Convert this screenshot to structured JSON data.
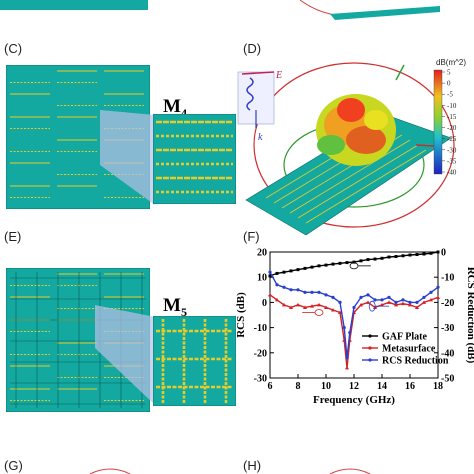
{
  "panels": {
    "c": {
      "label": "(C)",
      "zoom_label": "M",
      "zoom_sub": "4"
    },
    "d": {
      "label": "(D)",
      "colorbar_title": "dB(m^2)",
      "colorbar_ticks": [
        "5",
        "0",
        "-5",
        "-10",
        "-15",
        "-20",
        "-25",
        "-30",
        "-35",
        "-40"
      ],
      "wave_e": "E",
      "wave_k": "k"
    },
    "e": {
      "label": "(E)",
      "zoom_label": "M",
      "zoom_sub": "5"
    },
    "f": {
      "label": "(F)"
    },
    "g": {
      "label": "(G)"
    },
    "h": {
      "label": "(H)"
    }
  },
  "colors": {
    "board": "#14a9a0",
    "strip": "#e6cc2a",
    "gaf": "#000000",
    "metasurface": "#d42020",
    "rcs_reduction": "#2a3fd0"
  },
  "chart_data": {
    "type": "line",
    "xlabel": "Frequency (GHz)",
    "ylabel": "RCS (dB)",
    "y2label": "RCS Reduction (dB)",
    "xlim": [
      6,
      18
    ],
    "ylim": [
      -30,
      20
    ],
    "y2lim": [
      -50,
      0
    ],
    "xticks": [
      6,
      8,
      10,
      12,
      14,
      16,
      18
    ],
    "yticks": [
      20,
      10,
      0,
      -10,
      -20,
      -30
    ],
    "y2ticks": [
      0,
      -10,
      -20,
      -30,
      -40,
      -50
    ],
    "legend_position": "bottom-right",
    "series": [
      {
        "name": "GAF Plate",
        "axis": "left",
        "color": "#000000",
        "marker": "square",
        "x": [
          6,
          6.5,
          7,
          7.5,
          8,
          8.5,
          9,
          9.5,
          10,
          10.5,
          11,
          11.5,
          12,
          12.5,
          13,
          13.5,
          14,
          14.5,
          15,
          15.5,
          16,
          16.5,
          17,
          17.5,
          18
        ],
        "y": [
          10.5,
          11.5,
          12,
          12.5,
          13,
          13.5,
          14,
          14.5,
          14.8,
          15.2,
          15.5,
          15.8,
          16,
          16.5,
          17,
          17.2,
          17.5,
          18,
          18.2,
          18.5,
          18.8,
          19,
          19.2,
          19.5,
          20
        ]
      },
      {
        "name": "Metasurface",
        "axis": "left",
        "color": "#d42020",
        "marker": "triangle",
        "x": [
          6,
          6.5,
          7,
          7.5,
          8,
          8.5,
          9,
          9.5,
          10,
          10.5,
          11,
          11.3,
          11.5,
          11.7,
          12,
          12.5,
          13,
          13.5,
          14,
          14.5,
          15,
          15.5,
          16,
          16.5,
          17,
          17.5,
          18
        ],
        "y": [
          3,
          1,
          -1,
          -2,
          -1,
          -2,
          -1.5,
          -1,
          -2,
          -3,
          -4,
          -15,
          -26,
          -15,
          -4,
          -1,
          0,
          -2,
          -1,
          0,
          -1,
          -0.5,
          -1,
          -2,
          0,
          1,
          2
        ]
      },
      {
        "name": "RCS Reduction",
        "axis": "right",
        "color": "#2a3fd0",
        "marker": "circle",
        "x": [
          6,
          6.5,
          7,
          7.5,
          8,
          8.5,
          9,
          9.5,
          10,
          10.5,
          11,
          11.3,
          11.5,
          11.7,
          12,
          12.5,
          13,
          13.5,
          14,
          14.5,
          15,
          15.5,
          16,
          16.5,
          17,
          17.5,
          18
        ],
        "y": [
          -8,
          -13,
          -14,
          -15,
          -15,
          -16,
          -16,
          -16,
          -17,
          -18,
          -20,
          -30,
          -42,
          -32,
          -22,
          -18,
          -17,
          -19,
          -19,
          -18,
          -20,
          -19,
          -20,
          -20,
          -18,
          -16,
          -14
        ]
      }
    ]
  }
}
